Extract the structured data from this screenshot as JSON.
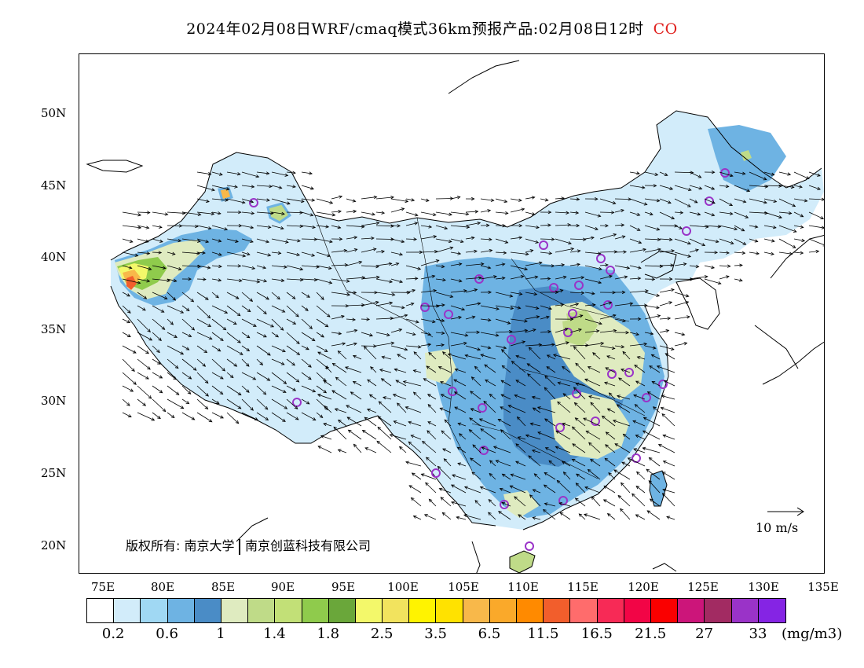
{
  "title": {
    "text": "2024年02月08日WRF/cmaq模式36km预报产品:02月08日12时",
    "species": "CO",
    "species_color": "#e0201d"
  },
  "axes": {
    "lat_labels": [
      "50N",
      "45N",
      "40N",
      "35N",
      "30N",
      "25N",
      "20N"
    ],
    "lon_labels": [
      "75E",
      "80E",
      "85E",
      "90E",
      "95E",
      "100E",
      "105E",
      "110E",
      "115E",
      "120E",
      "125E",
      "130E",
      "135E"
    ]
  },
  "copyright": {
    "part1": "版权所有: 南京大学",
    "part2": "南京创蓝科技有限公司"
  },
  "reference_vector": {
    "label": "10 m/s"
  },
  "colorbar": {
    "colors": [
      "#ffffff",
      "#d2ecfa",
      "#a0d8f3",
      "#6eb3e3",
      "#4a8cc6",
      "#dfebc0",
      "#bfdb88",
      "#c2e077",
      "#8fcb4c",
      "#6aa73a",
      "#f3f86a",
      "#f2e35e",
      "#fff300",
      "#ffe200",
      "#f8b84a",
      "#faa92a",
      "#ff8a00",
      "#f25e2c",
      "#ff6c6c",
      "#f72a56",
      "#f20546",
      "#fa0000",
      "#cc157a",
      "#a22b62",
      "#9a33c8",
      "#8524e4"
    ],
    "labels": [
      "0.2",
      "0.6",
      "1",
      "1.4",
      "1.8",
      "2.5",
      "3.5",
      "6.5",
      "11.5",
      "16.5",
      "21.5",
      "27",
      "33"
    ],
    "unit": "(mg/m3)"
  }
}
